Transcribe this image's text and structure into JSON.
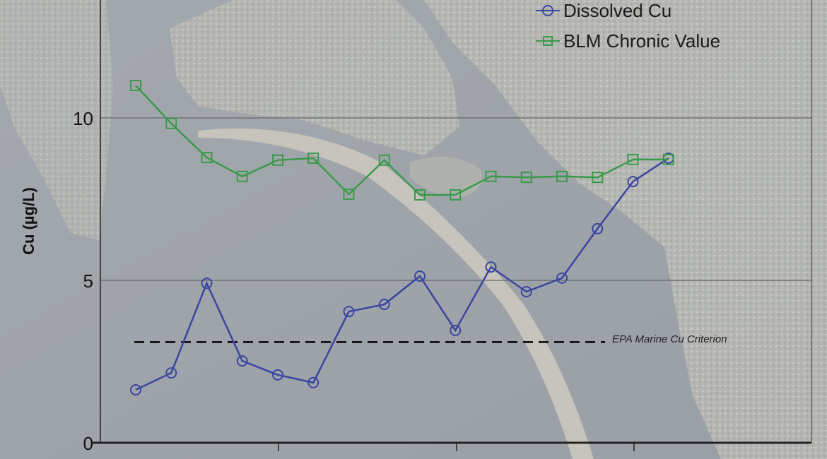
{
  "chart_data": {
    "type": "line",
    "title": "",
    "xlabel": "",
    "ylabel": "Cu (µg/L)",
    "ylim": [
      0,
      13.6
    ],
    "yticks": [
      "0",
      "5",
      "10"
    ],
    "grid": "horizontal",
    "legend_position": "top-right",
    "background": "aerial photograph of a bay",
    "x": [
      1,
      2,
      3,
      4,
      5,
      6,
      7,
      8,
      9,
      10,
      11,
      12,
      13,
      14,
      15,
      16
    ],
    "series": [
      {
        "name": "Dissolved Cu",
        "marker": "circle",
        "color": "#3a45a0",
        "values": [
          1.63,
          2.15,
          4.91,
          2.52,
          2.09,
          1.85,
          4.04,
          4.26,
          5.13,
          3.46,
          5.41,
          4.65,
          5.07,
          6.59,
          8.04,
          8.76
        ]
      },
      {
        "name": "BLM Chronic Value",
        "marker": "square",
        "color": "#3a9a4a",
        "values": [
          11.0,
          9.83,
          8.78,
          8.2,
          8.7,
          8.76,
          7.65,
          8.7,
          7.63,
          7.63,
          8.2,
          8.17,
          8.2,
          8.17,
          8.72,
          8.72
        ]
      }
    ],
    "reference_line": {
      "label": "EPA Marine Cu Criterion",
      "value": 3.1,
      "style": "dashed",
      "color": "#000000"
    }
  }
}
